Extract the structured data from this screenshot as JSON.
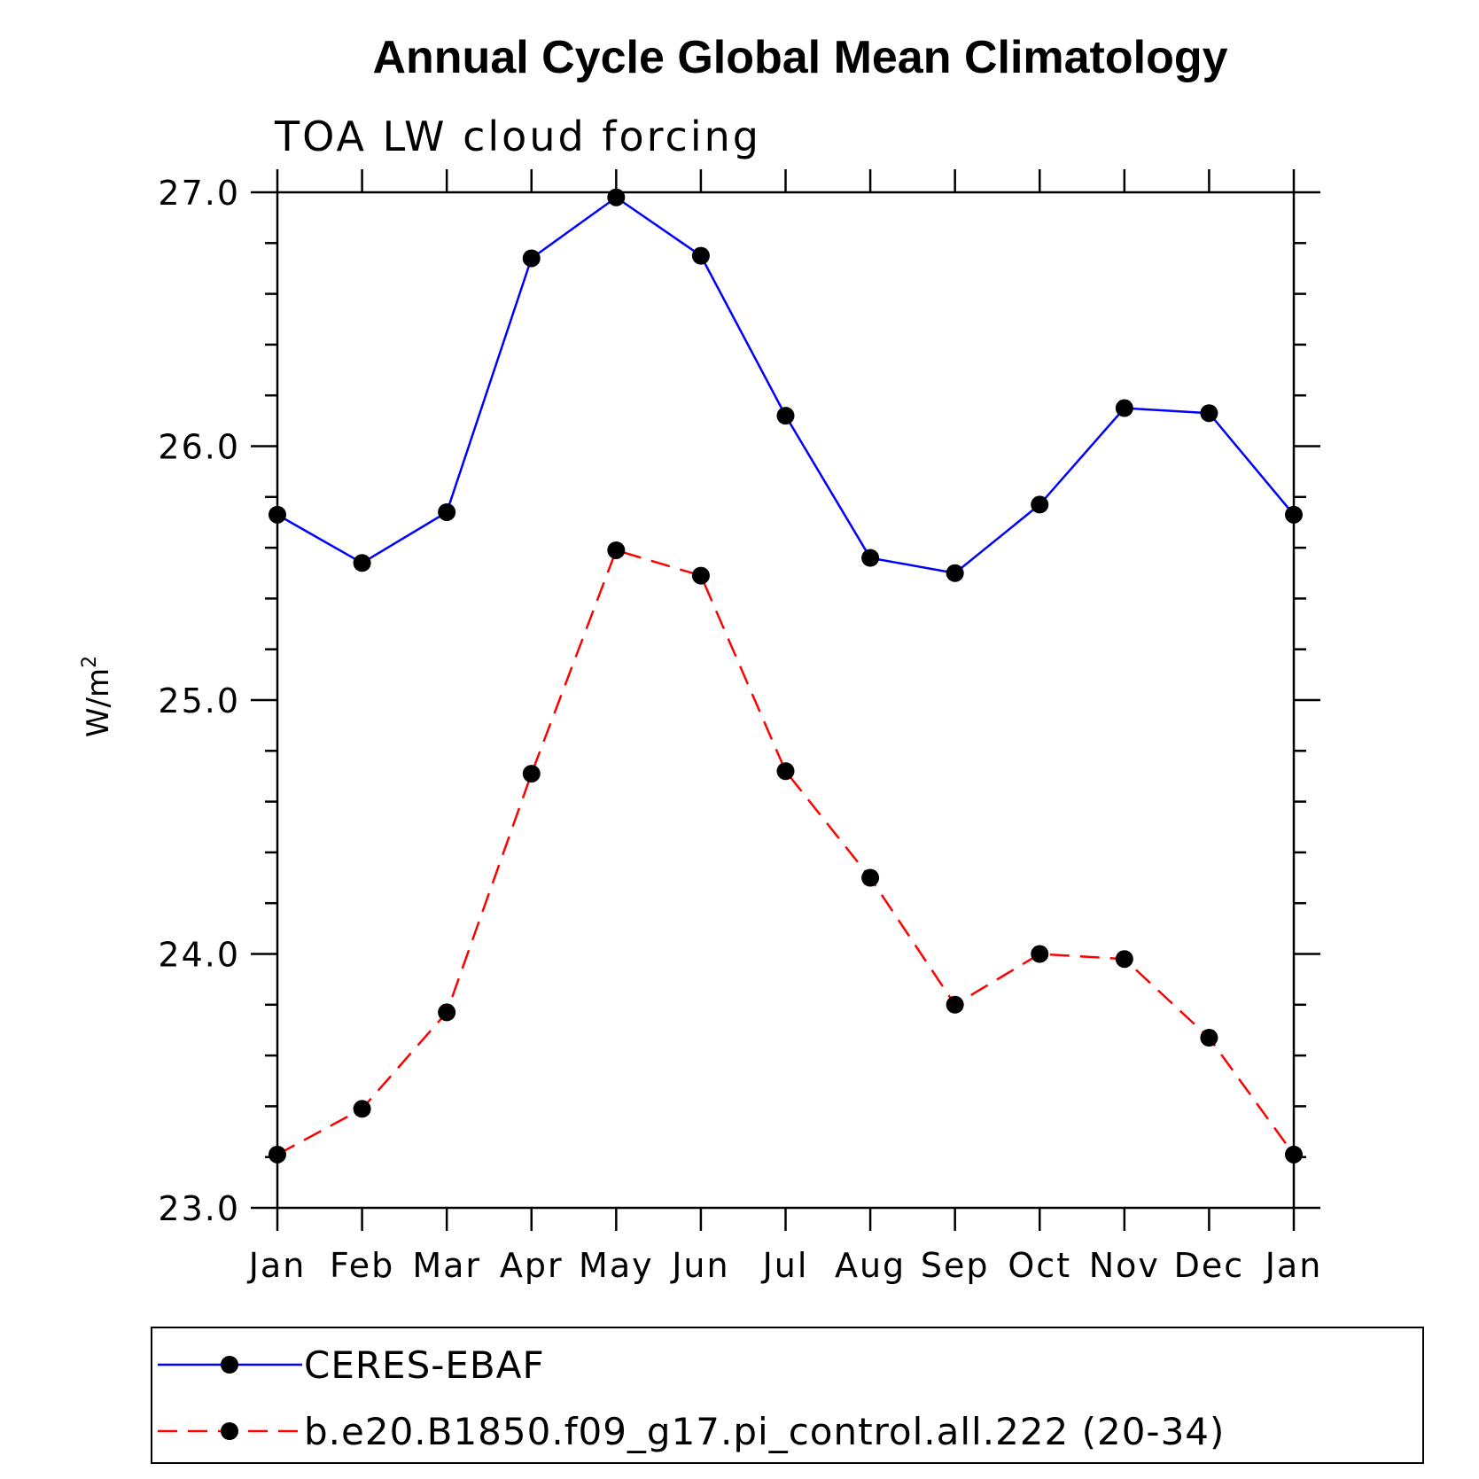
{
  "chart_data": {
    "type": "line",
    "title": "Annual Cycle Global Mean Climatology",
    "subtitle": "TOA LW cloud forcing",
    "ylabel": "W/m",
    "ylabel_superscript": "2",
    "xlabel": "",
    "ylim": [
      23.0,
      27.0
    ],
    "yticks": [
      "23.0",
      "24.0",
      "25.0",
      "26.0",
      "27.0"
    ],
    "categories": [
      "Jan",
      "Feb",
      "Mar",
      "Apr",
      "May",
      "Jun",
      "Jul",
      "Aug",
      "Sep",
      "Oct",
      "Nov",
      "Dec",
      "Jan"
    ],
    "grid": false,
    "legend_position": "bottom",
    "series": [
      {
        "name": "CERES-EBAF",
        "color": "#0000ff",
        "dash": "solid",
        "marker": "circle",
        "values": [
          25.73,
          25.54,
          25.74,
          26.74,
          26.98,
          26.75,
          26.12,
          25.56,
          25.5,
          25.77,
          26.15,
          26.13,
          25.73
        ]
      },
      {
        "name": "b.e20.B1850.f09_g17.pi_control.all.222 (20-34)",
        "color": "#ff0000",
        "dash": "dashed",
        "marker": "circle",
        "values": [
          23.21,
          23.39,
          23.77,
          24.71,
          25.59,
          25.49,
          24.72,
          24.3,
          23.8,
          24.0,
          23.98,
          23.67,
          23.21
        ]
      }
    ]
  }
}
